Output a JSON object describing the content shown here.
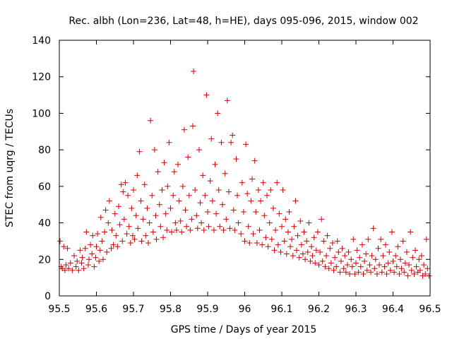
{
  "chart_data": {
    "type": "scatter",
    "title": "Rec. albh (Lon=236, Lat=48, h=HE), days 095-096, 2015, window 002",
    "xlabel": "GPS time / Days of year 2015",
    "ylabel": "STEC from uqrg / TECUs",
    "xlim": [
      95.5,
      96.5
    ],
    "ylim": [
      0,
      140
    ],
    "xticks": [
      95.5,
      95.6,
      95.7,
      95.8,
      95.9,
      96.0,
      96.1,
      96.2,
      96.3,
      96.4,
      96.5
    ],
    "xtick_labels": [
      "95.5",
      "95.6",
      "95.7",
      "95.8",
      "95.9",
      "96",
      "96.1",
      "96.2",
      "96.3",
      "96.4",
      "96.5"
    ],
    "yticks": [
      0,
      20,
      40,
      60,
      80,
      100,
      120,
      140
    ],
    "ytick_labels": [
      "0",
      "20",
      "40",
      "60",
      "80",
      "100",
      "120",
      "140"
    ],
    "marker": "+",
    "color": "#cc0000",
    "series": [
      {
        "name": "STEC",
        "points": [
          [
            95.502,
            30
          ],
          [
            95.505,
            16
          ],
          [
            95.508,
            15
          ],
          [
            95.512,
            27
          ],
          [
            95.515,
            14
          ],
          [
            95.518,
            17
          ],
          [
            95.522,
            26
          ],
          [
            95.525,
            15
          ],
          [
            95.53,
            18
          ],
          [
            95.535,
            14
          ],
          [
            95.54,
            22
          ],
          [
            95.545,
            16
          ],
          [
            95.548,
            19
          ],
          [
            95.552,
            14
          ],
          [
            95.556,
            25
          ],
          [
            95.56,
            18
          ],
          [
            95.562,
            21
          ],
          [
            95.566,
            15
          ],
          [
            95.57,
            26
          ],
          [
            95.573,
            35
          ],
          [
            95.578,
            17
          ],
          [
            95.58,
            20
          ],
          [
            95.584,
            28
          ],
          [
            95.588,
            23
          ],
          [
            95.59,
            33
          ],
          [
            95.594,
            16
          ],
          [
            95.598,
            21
          ],
          [
            95.6,
            27
          ],
          [
            95.603,
            34
          ],
          [
            95.607,
            19
          ],
          [
            95.61,
            25
          ],
          [
            95.612,
            43
          ],
          [
            95.615,
            30
          ],
          [
            95.618,
            20
          ],
          [
            95.622,
            35
          ],
          [
            95.625,
            47
          ],
          [
            95.628,
            24
          ],
          [
            95.632,
            40
          ],
          [
            95.635,
            52
          ],
          [
            95.64,
            26
          ],
          [
            95.642,
            36
          ],
          [
            95.646,
            28
          ],
          [
            95.65,
            45
          ],
          [
            95.653,
            33
          ],
          [
            95.657,
            27
          ],
          [
            95.66,
            49
          ],
          [
            95.663,
            39
          ],
          [
            95.667,
            61
          ],
          [
            95.67,
            30
          ],
          [
            95.672,
            57
          ],
          [
            95.675,
            42
          ],
          [
            95.678,
            62
          ],
          [
            95.682,
            34
          ],
          [
            95.685,
            55
          ],
          [
            95.688,
            38
          ],
          [
            95.692,
            29
          ],
          [
            95.695,
            48
          ],
          [
            95.698,
            33
          ],
          [
            95.7,
            58
          ],
          [
            95.703,
            31
          ],
          [
            95.707,
            44
          ],
          [
            95.71,
            66
          ],
          [
            95.712,
            37
          ],
          [
            95.716,
            79
          ],
          [
            95.72,
            52
          ],
          [
            95.722,
            30
          ],
          [
            95.726,
            42
          ],
          [
            95.73,
            61
          ],
          [
            95.733,
            33
          ],
          [
            95.737,
            48
          ],
          [
            95.74,
            29
          ],
          [
            95.743,
            40
          ],
          [
            95.746,
            96
          ],
          [
            95.75,
            55
          ],
          [
            95.753,
            35
          ],
          [
            95.757,
            80
          ],
          [
            95.76,
            44
          ],
          [
            95.762,
            31
          ],
          [
            95.766,
            68
          ],
          [
            95.77,
            50
          ],
          [
            95.773,
            38
          ],
          [
            95.777,
            58
          ],
          [
            95.78,
            32
          ],
          [
            95.783,
            73
          ],
          [
            95.787,
            45
          ],
          [
            95.79,
            36
          ],
          [
            95.792,
            60
          ],
          [
            95.796,
            84
          ],
          [
            95.8,
            48
          ],
          [
            95.803,
            35
          ],
          [
            95.807,
            55
          ],
          [
            95.81,
            68
          ],
          [
            95.813,
            40
          ],
          [
            95.816,
            36
          ],
          [
            95.82,
            72
          ],
          [
            95.823,
            52
          ],
          [
            95.827,
            41
          ],
          [
            95.83,
            35
          ],
          [
            95.833,
            60
          ],
          [
            95.837,
            91
          ],
          [
            95.84,
            47
          ],
          [
            95.843,
            38
          ],
          [
            95.847,
            76
          ],
          [
            95.85,
            55
          ],
          [
            95.853,
            36
          ],
          [
            95.857,
            42
          ],
          [
            95.86,
            93
          ],
          [
            95.862,
            123
          ],
          [
            95.866,
            58
          ],
          [
            95.87,
            44
          ],
          [
            95.873,
            37
          ],
          [
            95.877,
            80
          ],
          [
            95.88,
            51
          ],
          [
            95.883,
            40
          ],
          [
            95.887,
            66
          ],
          [
            95.89,
            36
          ],
          [
            95.893,
            55
          ],
          [
            95.897,
            110
          ],
          [
            95.9,
            46
          ],
          [
            95.903,
            38
          ],
          [
            95.907,
            63
          ],
          [
            95.91,
            86
          ],
          [
            95.913,
            52
          ],
          [
            95.917,
            36
          ],
          [
            95.92,
            72
          ],
          [
            95.923,
            45
          ],
          [
            95.927,
            100
          ],
          [
            95.93,
            58
          ],
          [
            95.933,
            38
          ],
          [
            95.937,
            84
          ],
          [
            95.94,
            50
          ],
          [
            95.943,
            36
          ],
          [
            95.947,
            67
          ],
          [
            95.95,
            42
          ],
          [
            95.953,
            107
          ],
          [
            95.957,
            57
          ],
          [
            95.96,
            37
          ],
          [
            95.963,
            84
          ],
          [
            95.967,
            88
          ],
          [
            95.97,
            47
          ],
          [
            95.973,
            36
          ],
          [
            95.977,
            75
          ],
          [
            95.98,
            55
          ],
          [
            95.983,
            40
          ],
          [
            95.99,
            34
          ],
          [
            95.993,
            62
          ],
          [
            95.997,
            46
          ],
          [
            96.0,
            30
          ],
          [
            96.003,
            83
          ],
          [
            96.007,
            56
          ],
          [
            96.01,
            38
          ],
          [
            96.013,
            29
          ],
          [
            96.017,
            52
          ],
          [
            96.02,
            64
          ],
          [
            96.023,
            34
          ],
          [
            96.027,
            74
          ],
          [
            96.03,
            46
          ],
          [
            96.033,
            29
          ],
          [
            96.037,
            58
          ],
          [
            96.04,
            36
          ],
          [
            96.043,
            52
          ],
          [
            96.047,
            28
          ],
          [
            96.05,
            62
          ],
          [
            96.053,
            44
          ],
          [
            96.057,
            32
          ],
          [
            96.06,
            55
          ],
          [
            96.063,
            27
          ],
          [
            96.067,
            40
          ],
          [
            96.07,
            58
          ],
          [
            96.073,
            31
          ],
          [
            96.077,
            48
          ],
          [
            96.08,
            25
          ],
          [
            96.083,
            36
          ],
          [
            96.087,
            62
          ],
          [
            96.09,
            28
          ],
          [
            96.093,
            45
          ],
          [
            96.097,
            24
          ],
          [
            96.1,
            38
          ],
          [
            96.103,
            58
          ],
          [
            96.107,
            30
          ],
          [
            96.11,
            42
          ],
          [
            96.113,
            23
          ],
          [
            96.117,
            35
          ],
          [
            96.12,
            46
          ],
          [
            96.123,
            27
          ],
          [
            96.127,
            31
          ],
          [
            96.13,
            22
          ],
          [
            96.133,
            38
          ],
          [
            96.137,
            52
          ],
          [
            96.14,
            25
          ],
          [
            96.143,
            33
          ],
          [
            96.147,
            21
          ],
          [
            96.15,
            41
          ],
          [
            96.153,
            28
          ],
          [
            96.157,
            23
          ],
          [
            96.16,
            35
          ],
          [
            96.163,
            20
          ],
          [
            96.167,
            30
          ],
          [
            96.17,
            24
          ],
          [
            96.173,
            40
          ],
          [
            96.177,
            19
          ],
          [
            96.18,
            27
          ],
          [
            96.183,
            22
          ],
          [
            96.187,
            32
          ],
          [
            96.19,
            18
          ],
          [
            96.193,
            25
          ],
          [
            96.197,
            35
          ],
          [
            96.2,
            17
          ],
          [
            96.203,
            24
          ],
          [
            96.207,
            42
          ],
          [
            96.21,
            19
          ],
          [
            96.213,
            30
          ],
          [
            96.217,
            16
          ],
          [
            96.22,
            22
          ],
          [
            96.223,
            33
          ],
          [
            96.227,
            15
          ],
          [
            96.23,
            26
          ],
          [
            96.233,
            18
          ],
          [
            96.237,
            29
          ],
          [
            96.24,
            14
          ],
          [
            96.243,
            21
          ],
          [
            96.247,
            16
          ],
          [
            96.25,
            30
          ],
          [
            96.253,
            24
          ],
          [
            96.257,
            13
          ],
          [
            96.26,
            19
          ],
          [
            96.263,
            26
          ],
          [
            96.267,
            15
          ],
          [
            96.27,
            22
          ],
          [
            96.273,
            13
          ],
          [
            96.277,
            17
          ],
          [
            96.28,
            24
          ],
          [
            96.283,
            12
          ],
          [
            96.287,
            20
          ],
          [
            96.29,
            16
          ],
          [
            96.293,
            31
          ],
          [
            96.297,
            12
          ],
          [
            96.3,
            18
          ],
          [
            96.303,
            25
          ],
          [
            96.307,
            13
          ],
          [
            96.31,
            21
          ],
          [
            96.313,
            16
          ],
          [
            96.317,
            28
          ],
          [
            96.32,
            12
          ],
          [
            96.323,
            19
          ],
          [
            96.327,
            23
          ],
          [
            96.33,
            14
          ],
          [
            96.333,
            31
          ],
          [
            96.337,
            17
          ],
          [
            96.34,
            13
          ],
          [
            96.343,
            22
          ],
          [
            96.347,
            37
          ],
          [
            96.35,
            15
          ],
          [
            96.353,
            20
          ],
          [
            96.357,
            12
          ],
          [
            96.36,
            26
          ],
          [
            96.363,
            17
          ],
          [
            96.367,
            31
          ],
          [
            96.37,
            13
          ],
          [
            96.373,
            22
          ],
          [
            96.377,
            16
          ],
          [
            96.38,
            28
          ],
          [
            96.383,
            12
          ],
          [
            96.387,
            18
          ],
          [
            96.39,
            24
          ],
          [
            96.393,
            14
          ],
          [
            96.397,
            35
          ],
          [
            96.4,
            19
          ],
          [
            96.403,
            13
          ],
          [
            96.407,
            22
          ],
          [
            96.41,
            16
          ],
          [
            96.413,
            27
          ],
          [
            96.417,
            12
          ],
          [
            96.42,
            20
          ],
          [
            96.423,
            15
          ],
          [
            96.427,
            30
          ],
          [
            96.43,
            13
          ],
          [
            96.433,
            18
          ],
          [
            96.437,
            24
          ],
          [
            96.44,
            11
          ],
          [
            96.443,
            17
          ],
          [
            96.447,
            35
          ],
          [
            96.45,
            14
          ],
          [
            96.453,
            21
          ],
          [
            96.457,
            12
          ],
          [
            96.46,
            25
          ],
          [
            96.463,
            16
          ],
          [
            96.467,
            13
          ],
          [
            96.47,
            20
          ],
          [
            96.473,
            14
          ],
          [
            96.477,
            22
          ],
          [
            96.48,
            11
          ],
          [
            96.483,
            17
          ],
          [
            96.487,
            12
          ],
          [
            96.49,
            31
          ],
          [
            96.493,
            15
          ],
          [
            96.497,
            11
          ]
        ]
      }
    ]
  }
}
